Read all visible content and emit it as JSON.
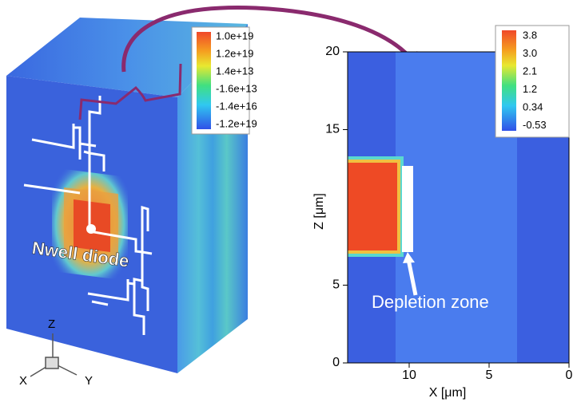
{
  "left_panel": {
    "colorbar_labels": [
      "1.0e+19",
      "1.2e+19",
      "1.4e+13",
      "-1.6e+13",
      "-1.4e+16",
      "-1.2e+19"
    ],
    "annotation": "Nwell diode",
    "triad": {
      "z": "Z",
      "x": "X",
      "y": "Y"
    }
  },
  "right_panel": {
    "colorbar_labels": [
      "3.8",
      "3.0",
      "2.1",
      "1.2",
      "0.34",
      "-0.53"
    ],
    "x_label": "X [μm]",
    "z_label": "Z [μm]",
    "xlim": [
      13.85,
      0
    ],
    "zlim": [
      0,
      20
    ],
    "xticks": [
      10,
      5,
      0
    ],
    "zticks": [
      0,
      5,
      15,
      20
    ],
    "annotation": "Depletion zone"
  }
}
